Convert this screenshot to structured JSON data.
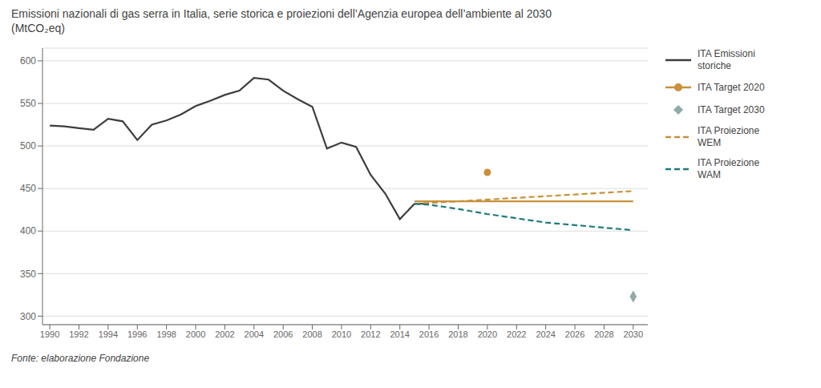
{
  "chart_data": {
    "type": "line",
    "title": "Emissioni nazionali di gas serra in Italia, serie storica e proiezioni dell’Agenzia europea dell’ambiente al 2030",
    "subtitle": "(MtCO₂eq)",
    "annotations": [
      "Fonte: elaborazione Fondazione"
    ],
    "xlim": [
      1989.5,
      2031
    ],
    "xticks": [
      1990,
      1992,
      1994,
      1996,
      1998,
      2000,
      2002,
      2004,
      2006,
      2008,
      2010,
      2012,
      2014,
      2016,
      2018,
      2020,
      2022,
      2024,
      2026,
      2028,
      2030
    ],
    "ylim": [
      290,
      615
    ],
    "yticks": [
      300,
      350,
      400,
      450,
      500,
      550,
      600
    ],
    "grid": "y",
    "legend": "right",
    "series": [
      {
        "name": "ITA Emissioni\nstoriche",
        "type": "line",
        "color": "#3d3d3d",
        "line_style": "solid",
        "x": [
          1990,
          1991,
          1992,
          1993,
          1994,
          1995,
          1996,
          1997,
          1998,
          1999,
          2000,
          2001,
          2002,
          2003,
          2004,
          2005,
          2006,
          2007,
          2008,
          2009,
          2010,
          2011,
          2012,
          2013,
          2014,
          2015,
          2016
        ],
        "values": [
          524,
          523,
          521,
          519,
          532,
          529,
          507,
          525,
          530,
          537,
          547,
          553,
          560,
          565,
          580,
          578,
          565,
          555,
          546,
          497,
          504,
          499,
          466,
          444,
          414,
          432,
          432
        ]
      },
      {
        "name": "ITA Target 2020",
        "type": "line",
        "color": "#c8913a",
        "line_style": "solid",
        "x": [
          2015,
          2030
        ],
        "values": [
          435,
          435
        ]
      },
      {
        "name": "ITA Target 2020",
        "type": "scatter",
        "color": "#c8913a",
        "marker": "circle",
        "x": [
          2020
        ],
        "values": [
          469
        ]
      },
      {
        "name": "ITA Target 2030",
        "type": "scatter",
        "color": "#8faaa8",
        "marker": "diamond",
        "x": [
          2030
        ],
        "values": [
          323
        ]
      },
      {
        "name": "ITA Proiezione\nWEM",
        "type": "line",
        "color": "#c8913a",
        "line_style": "dashed",
        "x": [
          2015,
          2016,
          2018,
          2020,
          2022,
          2024,
          2026,
          2028,
          2030
        ],
        "values": [
          432,
          433,
          435,
          437,
          439,
          441,
          443,
          445,
          447
        ]
      },
      {
        "name": "ITA Proiezione\nWAM",
        "type": "line",
        "color": "#1e7b7b",
        "line_style": "dashed",
        "x": [
          2015,
          2016,
          2018,
          2020,
          2022,
          2024,
          2026,
          2028,
          2030
        ],
        "values": [
          432,
          431,
          426,
          420,
          415,
          410,
          407,
          404,
          401
        ]
      }
    ]
  }
}
